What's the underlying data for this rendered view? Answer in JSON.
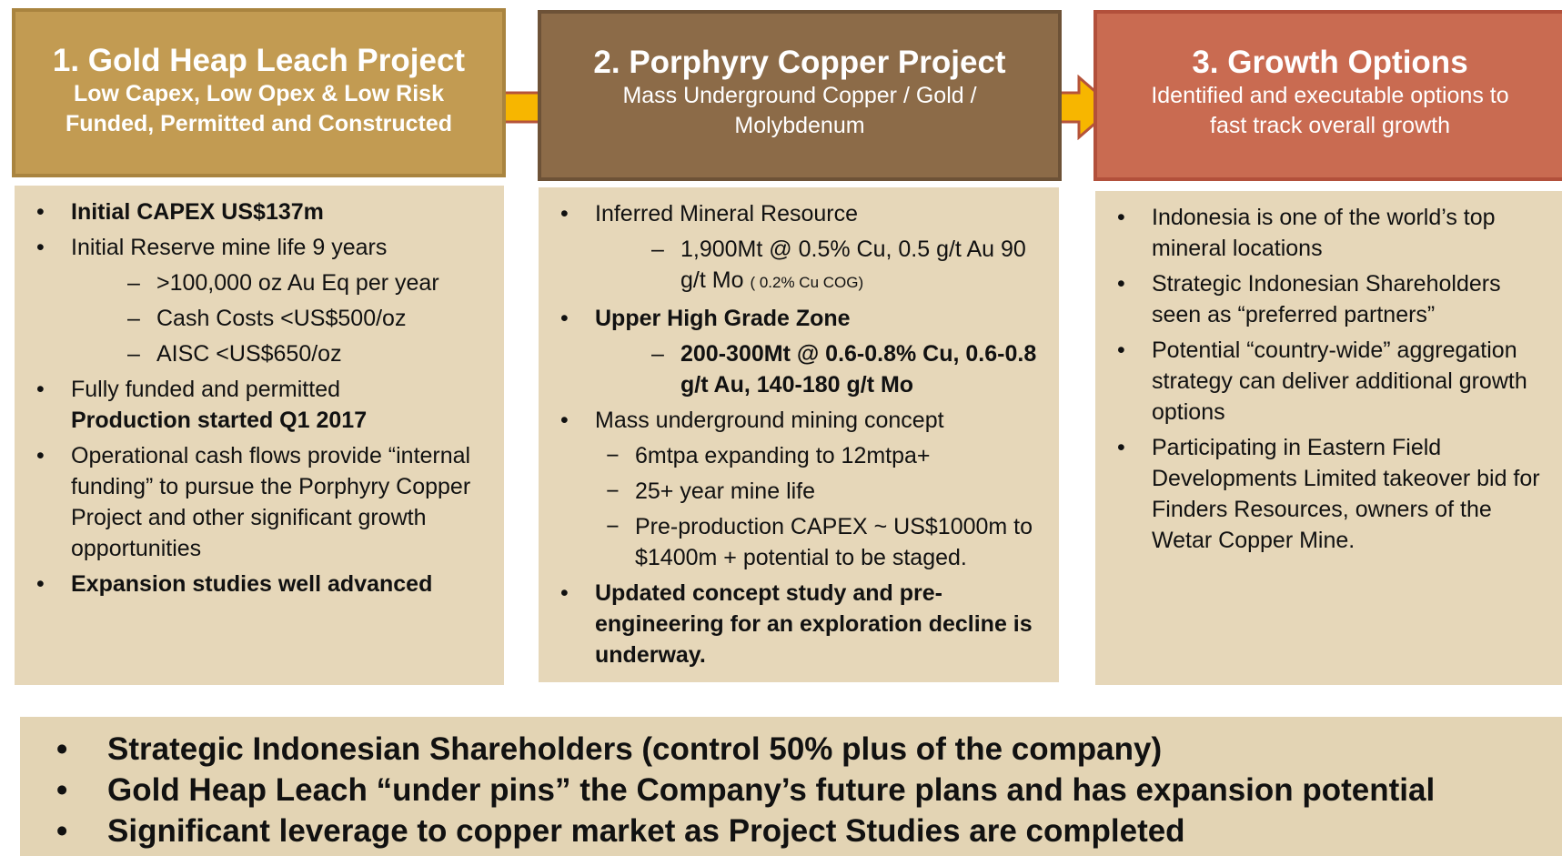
{
  "columns": [
    {
      "title": "1. Gold Heap Leach Project",
      "subtitle": [
        "Low Capex, Low Opex & Low Risk",
        "Funded, Permitted and Constructed"
      ],
      "subtitle_bold": true,
      "items": [
        {
          "level": 0,
          "parts": [
            {
              "text": "Initial CAPEX US$137m",
              "bold": true
            }
          ]
        },
        {
          "level": 0,
          "parts": [
            {
              "text": "Initial Reserve mine life 9 years"
            }
          ]
        },
        {
          "level": 2,
          "parts": [
            {
              "text": ">100,000 oz Au Eq per year"
            }
          ]
        },
        {
          "level": 2,
          "parts": [
            {
              "text": "Cash Costs <US$500/oz"
            }
          ]
        },
        {
          "level": 2,
          "parts": [
            {
              "text": "AISC <US$650/oz"
            }
          ]
        },
        {
          "level": 0,
          "parts": [
            {
              "text": "Fully funded and permitted"
            },
            {
              "text": "Production started Q1 2017",
              "bold": true,
              "newline": true
            }
          ]
        },
        {
          "level": 0,
          "parts": [
            {
              "text": "Operational cash flows provide “internal funding” to pursue the Porphyry Copper Project and other significant growth opportunities"
            }
          ]
        },
        {
          "level": 0,
          "parts": [
            {
              "text": "Expansion studies well advanced",
              "bold": true
            }
          ]
        }
      ]
    },
    {
      "title": "2. Porphyry Copper Project",
      "subtitle": [
        "Mass Underground Copper / Gold /",
        "Molybdenum"
      ],
      "subtitle_bold": false,
      "items": [
        {
          "level": 0,
          "parts": [
            {
              "text": "Inferred Mineral Resource"
            }
          ]
        },
        {
          "level": 2,
          "parts": [
            {
              "text": "1,900Mt @ 0.5% Cu, 0.5 g/t Au 90 g/t Mo"
            },
            {
              "text": "( 0.2% Cu COG)",
              "small": true
            }
          ]
        },
        {
          "level": 0,
          "parts": [
            {
              "text": "Upper High Grade Zone",
              "bold": true
            }
          ]
        },
        {
          "level": 2,
          "parts": [
            {
              "text": "200-300Mt @ 0.6-0.8% Cu, 0.6-0.8 g/t Au, 140-180 g/t Mo",
              "bold": true
            }
          ]
        },
        {
          "level": 0,
          "parts": [
            {
              "text": "Mass underground mining concept"
            }
          ]
        },
        {
          "level": 1,
          "parts": [
            {
              "text": "6mtpa expanding to 12mtpa+"
            }
          ]
        },
        {
          "level": 1,
          "parts": [
            {
              "text": "25+ year mine life"
            }
          ]
        },
        {
          "level": 1,
          "parts": [
            {
              "text": "Pre-production CAPEX ~ US$1000m to $1400m + potential to be staged."
            }
          ]
        },
        {
          "level": 0,
          "parts": [
            {
              "text": "Updated concept study and pre-engineering for an exploration decline is underway.",
              "bold": true
            }
          ]
        }
      ]
    },
    {
      "title": "3. Growth Options",
      "subtitle": [
        "Identified and executable options to",
        "fast track overall growth"
      ],
      "subtitle_bold": false,
      "items": [
        {
          "level": 0,
          "parts": [
            {
              "text": "Indonesia is one of the world’s top mineral locations"
            }
          ]
        },
        {
          "level": 0,
          "parts": [
            {
              "text": "Strategic Indonesian Shareholders seen as “preferred partners”"
            }
          ]
        },
        {
          "level": 0,
          "parts": [
            {
              "text": "Potential “country-wide” aggregation strategy can deliver additional growth options"
            }
          ]
        },
        {
          "level": 0,
          "parts": [
            {
              "text": "Participating in Eastern Field Developments Limited takeover bid for Finders Resources, owners of the Wetar Copper Mine."
            }
          ]
        }
      ]
    }
  ],
  "summary": [
    "Strategic Indonesian Shareholders (control 50% plus of the company)",
    "Gold Heap Leach “under pins” the Company’s future plans and has expansion potential",
    "Significant leverage to copper market as Project Studies are completed"
  ]
}
